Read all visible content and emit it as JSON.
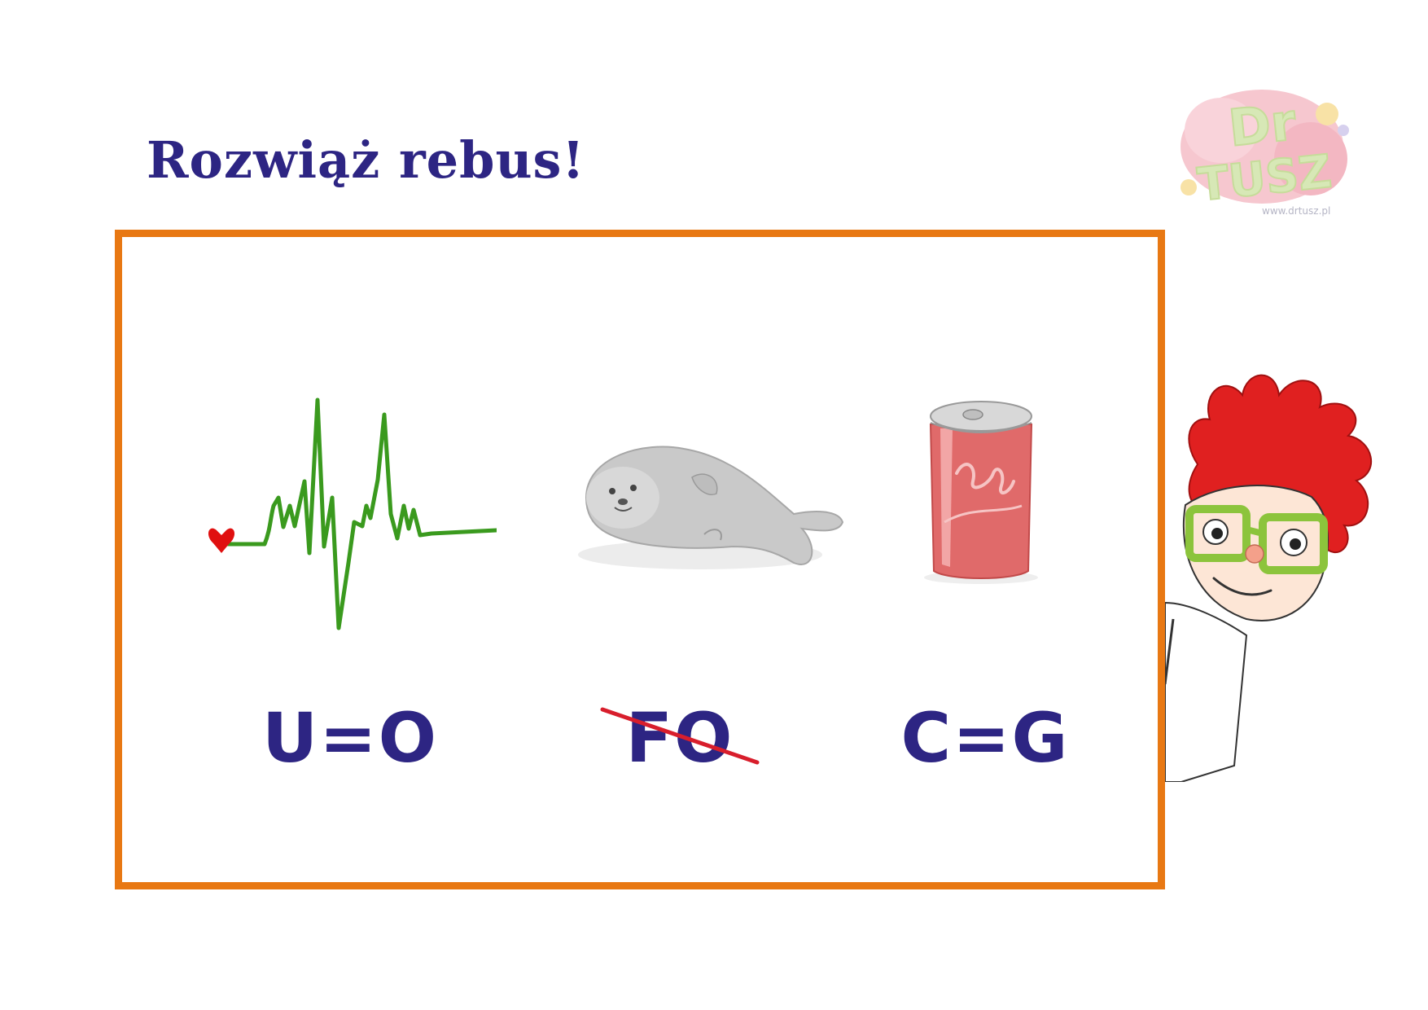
{
  "title": "Rozwiąż rebus!",
  "logo": {
    "text_line1": "Dr",
    "text_line2": "TUSZ",
    "url": "www.drtusz.pl"
  },
  "clues": [
    {
      "text": "U=O",
      "picture": "heartbeat-icon"
    },
    {
      "text": "FO",
      "picture": "seal-icon",
      "struck_out": true
    },
    {
      "text": "C=G",
      "picture": "soda-can-icon"
    }
  ],
  "colors": {
    "title": "#2d2583",
    "frame": "#e87813",
    "heartbeat_line": "#3a9a1e",
    "heart": "#e01010",
    "strike": "#d81e2c",
    "hair": "#e02020",
    "glasses": "#8cc43c"
  }
}
